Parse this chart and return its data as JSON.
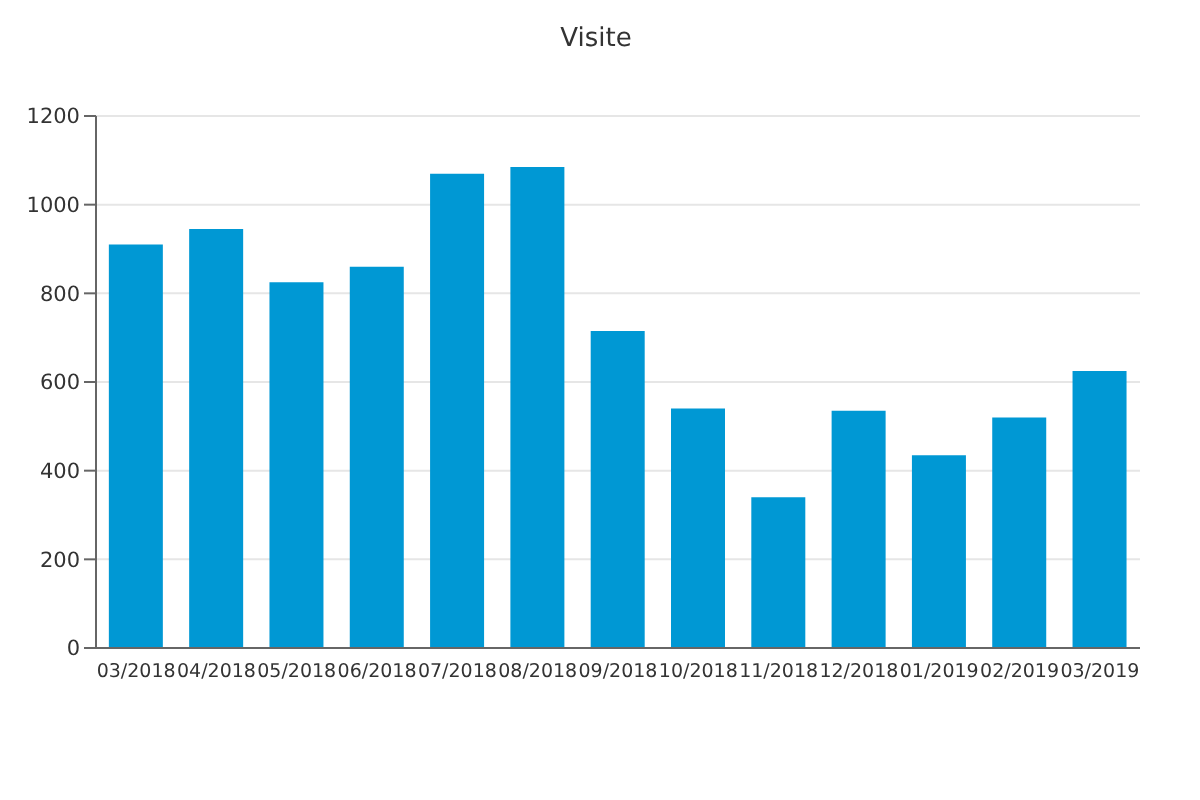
{
  "chart_data": {
    "type": "bar",
    "title": "Visite",
    "categories": [
      "03/2018",
      "04/2018",
      "05/2018",
      "06/2018",
      "07/2018",
      "08/2018",
      "09/2018",
      "10/2018",
      "11/2018",
      "12/2018",
      "01/2019",
      "02/2019",
      "03/2019"
    ],
    "values": [
      910,
      945,
      825,
      860,
      1070,
      1085,
      715,
      540,
      340,
      535,
      435,
      520,
      625
    ],
    "color": "#0098d4",
    "ylim": [
      0,
      1200
    ],
    "yticks": [
      0,
      200,
      400,
      600,
      800,
      1000,
      1200
    ],
    "grid": "y"
  }
}
